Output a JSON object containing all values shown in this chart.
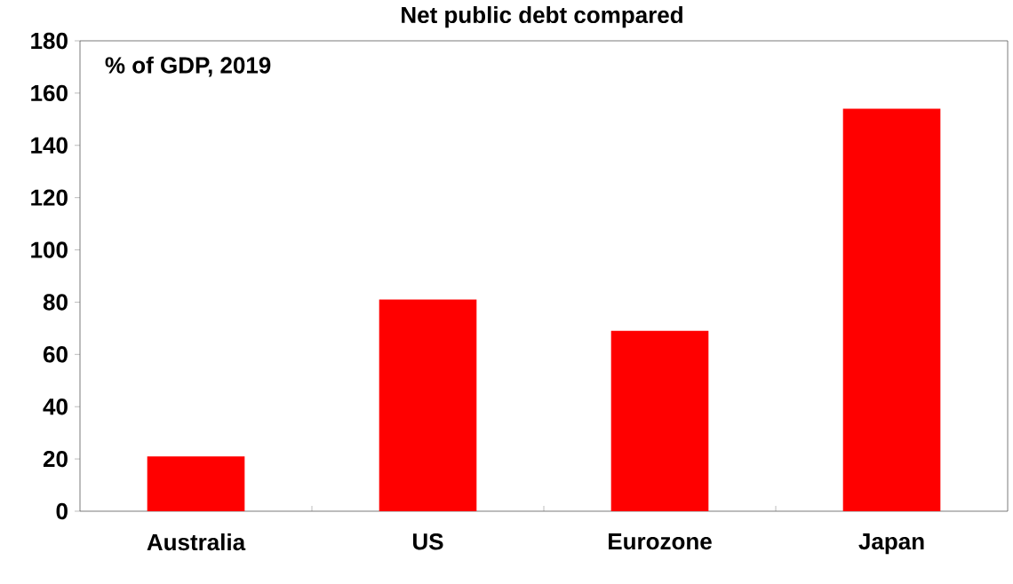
{
  "chart_data": {
    "type": "bar",
    "title": "Net public debt compared",
    "subtitle": "% of GDP, 2019",
    "categories": [
      "Australia",
      "US",
      "Eurozone",
      "Japan"
    ],
    "values": [
      21,
      81,
      69,
      154
    ],
    "color": "#ff0000",
    "ylim": [
      0,
      180
    ],
    "yticks": [
      0,
      20,
      40,
      60,
      80,
      100,
      120,
      140,
      160,
      180
    ],
    "grid": false
  }
}
